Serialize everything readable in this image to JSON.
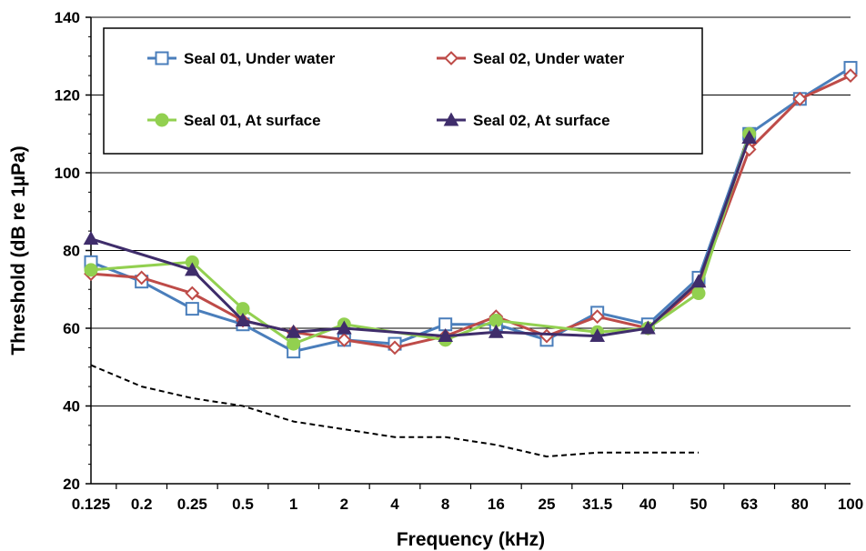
{
  "chart_data": {
    "type": "line",
    "xlabel": "Frequency (kHz)",
    "ylabel": "Threshold  (dB re 1µPa)",
    "categories": [
      "0.125",
      "0.2",
      "0.25",
      "0.5",
      "1",
      "2",
      "4",
      "8",
      "16",
      "25",
      "31.5",
      "40",
      "50",
      "63",
      "80",
      "100"
    ],
    "ylim": [
      20,
      140
    ],
    "yticks": [
      20,
      40,
      60,
      80,
      100,
      120,
      140
    ],
    "grid": "horizontal",
    "legend_position": "top-left (boxed)",
    "series": [
      {
        "name": "Seal 01, Under water",
        "color": "#4A7EBB",
        "marker": "square-open",
        "values": [
          77,
          72,
          65,
          61,
          54,
          57,
          56,
          61,
          61,
          57,
          64,
          61,
          73,
          110,
          119,
          127
        ]
      },
      {
        "name": "Seal 02, Under water",
        "color": "#BE4B48",
        "marker": "diamond-open",
        "values": [
          74,
          73,
          69,
          62,
          59,
          57,
          55,
          58,
          63,
          58,
          63,
          60,
          71,
          106,
          119,
          125
        ]
      },
      {
        "name": "Seal 01, At surface",
        "color": "#92D050",
        "marker": "circle-filled",
        "values": [
          75,
          null,
          77,
          65,
          56,
          61,
          null,
          57,
          62,
          null,
          59,
          60,
          69,
          110,
          null,
          null
        ]
      },
      {
        "name": "Seal 02, At surface",
        "color": "#3F2D6B",
        "marker": "triangle-filled",
        "values": [
          83,
          null,
          75,
          62,
          59,
          60,
          null,
          58,
          59,
          null,
          58,
          60,
          72,
          109,
          null,
          null
        ]
      },
      {
        "name": "",
        "color": "#000000",
        "style": "dashed",
        "marker": "none",
        "values": [
          50.5,
          45,
          42,
          40,
          36,
          34,
          32,
          32,
          30,
          27,
          28,
          28,
          28,
          null,
          null,
          null
        ]
      }
    ]
  }
}
